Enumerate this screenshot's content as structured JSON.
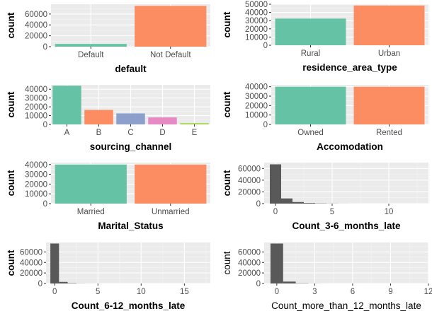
{
  "chart_data": [
    {
      "type": "bar",
      "categories": [
        "Default",
        "Not Default"
      ],
      "values": [
        5000,
        75000
      ],
      "colors": [
        "#66C2A5",
        "#FC8D62"
      ],
      "xlabel": "default",
      "ylabel": "count",
      "ylim": [
        0,
        78000
      ],
      "yticks": [
        0,
        20000,
        40000,
        60000
      ],
      "grid": true
    },
    {
      "type": "bar",
      "categories": [
        "Rural",
        "Urban"
      ],
      "values": [
        32500,
        48500
      ],
      "colors": [
        "#66C2A5",
        "#FC8D62"
      ],
      "xlabel": "residence_area_type",
      "ylabel": "count",
      "ylim": [
        0,
        50000
      ],
      "yticks": [
        0,
        10000,
        20000,
        30000,
        40000,
        50000
      ],
      "grid": true
    },
    {
      "type": "bar",
      "categories": [
        "A",
        "B",
        "C",
        "D",
        "E"
      ],
      "values": [
        44000,
        16500,
        12500,
        8000,
        1500
      ],
      "colors": [
        "#66C2A5",
        "#FC8D62",
        "#8DA0CB",
        "#E78AC3",
        "#A6D854"
      ],
      "xlabel": "sourcing_channel",
      "ylabel": "count",
      "ylim": [
        0,
        45000
      ],
      "yticks": [
        0,
        10000,
        20000,
        30000,
        40000
      ],
      "grid": true
    },
    {
      "type": "bar",
      "categories": [
        "Owned",
        "Rented"
      ],
      "values": [
        40000,
        40000
      ],
      "colors": [
        "#66C2A5",
        "#FC8D62"
      ],
      "xlabel": "Accomodation",
      "ylabel": "count",
      "ylim": [
        0,
        42000
      ],
      "yticks": [
        0,
        10000,
        20000,
        30000,
        40000
      ],
      "grid": true
    },
    {
      "type": "bar",
      "categories": [
        "Married",
        "Unmarried"
      ],
      "values": [
        40000,
        40000
      ],
      "colors": [
        "#66C2A5",
        "#FC8D62"
      ],
      "xlabel": "Marital_Status",
      "ylabel": "count",
      "ylim": [
        0,
        42000
      ],
      "yticks": [
        0,
        10000,
        20000,
        30000,
        40000
      ],
      "grid": true
    },
    {
      "type": "histogram",
      "x": [
        0,
        1,
        2,
        3,
        4,
        5,
        6,
        7,
        8,
        9,
        10,
        11,
        12,
        13
      ],
      "values": [
        67000,
        8800,
        2700,
        1100,
        400,
        170,
        70,
        30,
        12,
        5,
        3,
        1,
        1,
        1
      ],
      "color": "#595959",
      "xlabel": "Count_3-6_months_late",
      "ylabel": "count",
      "xlim": [
        -1,
        13.5
      ],
      "xticks": [
        0,
        5,
        10
      ],
      "ylim": [
        0,
        70000
      ],
      "yticks": [
        0,
        20000,
        40000,
        60000
      ],
      "grid": true
    },
    {
      "type": "histogram",
      "x": [
        0,
        1,
        2,
        3,
        4,
        5,
        6,
        7,
        8,
        9,
        10,
        11,
        12,
        13,
        14,
        15,
        16,
        17
      ],
      "values": [
        76000,
        3000,
        700,
        200,
        80,
        30,
        10,
        5,
        3,
        2,
        1,
        1,
        1,
        1,
        1,
        1,
        1,
        1
      ],
      "color": "#595959",
      "xlabel": "Count_6-12_months_late",
      "ylabel": "count",
      "xlim": [
        -1,
        18
      ],
      "xticks": [
        0,
        5,
        10,
        15
      ],
      "ylim": [
        0,
        78000
      ],
      "yticks": [
        0,
        20000,
        40000,
        60000
      ],
      "grid": true
    },
    {
      "type": "histogram",
      "x": [
        0,
        1,
        2,
        3,
        4,
        5,
        6,
        7,
        8,
        9,
        10,
        11
      ],
      "values": [
        76000,
        3600,
        500,
        100,
        30,
        10,
        5,
        2,
        1,
        1,
        1,
        1
      ],
      "color": "#595959",
      "xlabel": "Count_more_than_12_months_late",
      "ylabel": "count",
      "xlim": [
        -1,
        12
      ],
      "xticks": [
        0,
        3,
        6,
        9,
        12
      ],
      "ylim": [
        0,
        78000
      ],
      "yticks": [
        0,
        20000,
        40000,
        60000
      ],
      "grid": true,
      "plain_labels": true
    }
  ]
}
